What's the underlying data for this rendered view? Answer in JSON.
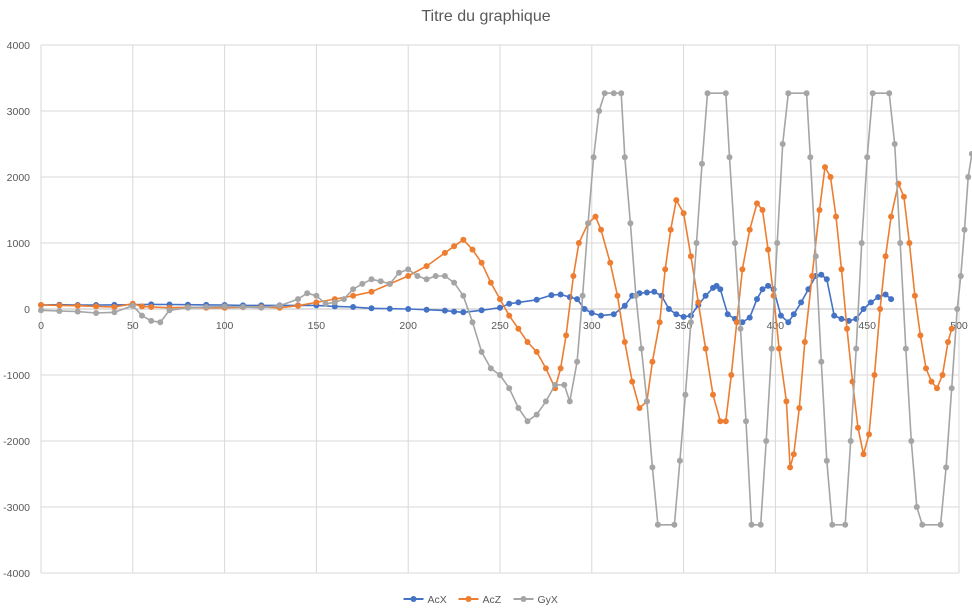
{
  "chart_data": {
    "type": "scatter",
    "title": "Titre du graphique",
    "xlim": [
      0,
      500
    ],
    "ylim": [
      -4000,
      4000
    ],
    "x_ticks": [
      "0",
      "50",
      "100",
      "150",
      "200",
      "250",
      "300",
      "350",
      "400",
      "450",
      "500"
    ],
    "y_ticks": [
      "4000",
      "3000",
      "2000",
      "1000",
      "0",
      "-1000",
      "-2000",
      "-3000",
      "-4000"
    ],
    "grid": true,
    "legend": "bottom",
    "series": [
      {
        "name": "AcX",
        "color": "#4472C4",
        "points": [
          [
            0,
            60
          ],
          [
            10,
            65
          ],
          [
            20,
            60
          ],
          [
            30,
            60
          ],
          [
            40,
            62
          ],
          [
            50,
            65
          ],
          [
            60,
            70
          ],
          [
            70,
            68
          ],
          [
            80,
            65
          ],
          [
            90,
            62
          ],
          [
            100,
            60
          ],
          [
            110,
            55
          ],
          [
            120,
            55
          ],
          [
            130,
            55
          ],
          [
            140,
            55
          ],
          [
            150,
            55
          ],
          [
            160,
            40
          ],
          [
            170,
            30
          ],
          [
            180,
            10
          ],
          [
            190,
            5
          ],
          [
            200,
            0
          ],
          [
            210,
            -10
          ],
          [
            220,
            -25
          ],
          [
            225,
            -40
          ],
          [
            230,
            -50
          ],
          [
            240,
            -20
          ],
          [
            250,
            20
          ],
          [
            255,
            80
          ],
          [
            260,
            100
          ],
          [
            270,
            140
          ],
          [
            278,
            210
          ],
          [
            283,
            220
          ],
          [
            288,
            180
          ],
          [
            292,
            150
          ],
          [
            296,
            0
          ],
          [
            300,
            -60
          ],
          [
            305,
            -100
          ],
          [
            312,
            -80
          ],
          [
            318,
            50
          ],
          [
            322,
            200
          ],
          [
            326,
            240
          ],
          [
            330,
            250
          ],
          [
            334,
            260
          ],
          [
            338,
            200
          ],
          [
            342,
            0
          ],
          [
            346,
            -80
          ],
          [
            350,
            -120
          ],
          [
            354,
            -100
          ],
          [
            358,
            60
          ],
          [
            362,
            200
          ],
          [
            366,
            320
          ],
          [
            368,
            350
          ],
          [
            370,
            300
          ],
          [
            374,
            -80
          ],
          [
            378,
            -150
          ],
          [
            382,
            -200
          ],
          [
            386,
            -130
          ],
          [
            390,
            150
          ],
          [
            393,
            300
          ],
          [
            396,
            350
          ],
          [
            399,
            300
          ],
          [
            403,
            -100
          ],
          [
            407,
            -200
          ],
          [
            410,
            -80
          ],
          [
            414,
            100
          ],
          [
            418,
            300
          ],
          [
            422,
            500
          ],
          [
            425,
            520
          ],
          [
            428,
            450
          ],
          [
            432,
            -100
          ],
          [
            436,
            -150
          ],
          [
            440,
            -180
          ],
          [
            444,
            -150
          ],
          [
            448,
            0
          ],
          [
            452,
            100
          ],
          [
            456,
            180
          ],
          [
            460,
            220
          ],
          [
            463,
            150
          ]
        ]
      },
      {
        "name": "AcZ",
        "color": "#ED7D31",
        "points": [
          [
            0,
            60
          ],
          [
            10,
            55
          ],
          [
            20,
            50
          ],
          [
            30,
            40
          ],
          [
            40,
            30
          ],
          [
            50,
            80
          ],
          [
            55,
            40
          ],
          [
            60,
            30
          ],
          [
            70,
            20
          ],
          [
            80,
            25
          ],
          [
            90,
            20
          ],
          [
            100,
            20
          ],
          [
            110,
            25
          ],
          [
            120,
            30
          ],
          [
            130,
            20
          ],
          [
            140,
            50
          ],
          [
            150,
            100
          ],
          [
            160,
            150
          ],
          [
            170,
            200
          ],
          [
            180,
            260
          ],
          [
            190,
            380
          ],
          [
            200,
            500
          ],
          [
            210,
            650
          ],
          [
            220,
            850
          ],
          [
            225,
            950
          ],
          [
            230,
            1050
          ],
          [
            235,
            900
          ],
          [
            240,
            700
          ],
          [
            245,
            400
          ],
          [
            250,
            150
          ],
          [
            255,
            -100
          ],
          [
            260,
            -300
          ],
          [
            265,
            -500
          ],
          [
            270,
            -650
          ],
          [
            275,
            -900
          ],
          [
            280,
            -1200
          ],
          [
            283,
            -900
          ],
          [
            286,
            -400
          ],
          [
            290,
            500
          ],
          [
            293,
            1000
          ],
          [
            298,
            1300
          ],
          [
            302,
            1400
          ],
          [
            305,
            1200
          ],
          [
            310,
            700
          ],
          [
            314,
            200
          ],
          [
            318,
            -500
          ],
          [
            322,
            -1100
          ],
          [
            326,
            -1500
          ],
          [
            330,
            -1400
          ],
          [
            333,
            -800
          ],
          [
            337,
            -200
          ],
          [
            340,
            600
          ],
          [
            343,
            1200
          ],
          [
            346,
            1650
          ],
          [
            350,
            1450
          ],
          [
            354,
            800
          ],
          [
            358,
            100
          ],
          [
            362,
            -600
          ],
          [
            366,
            -1300
          ],
          [
            370,
            -1700
          ],
          [
            373,
            -1700
          ],
          [
            376,
            -1000
          ],
          [
            379,
            -200
          ],
          [
            382,
            600
          ],
          [
            386,
            1200
          ],
          [
            390,
            1600
          ],
          [
            393,
            1500
          ],
          [
            396,
            900
          ],
          [
            399,
            200
          ],
          [
            402,
            -600
          ],
          [
            406,
            -1400
          ],
          [
            408,
            -2400
          ],
          [
            410,
            -2200
          ],
          [
            413,
            -1500
          ],
          [
            416,
            -500
          ],
          [
            420,
            500
          ],
          [
            424,
            1500
          ],
          [
            427,
            2150
          ],
          [
            430,
            2000
          ],
          [
            433,
            1400
          ],
          [
            436,
            600
          ],
          [
            439,
            -300
          ],
          [
            442,
            -1100
          ],
          [
            445,
            -1800
          ],
          [
            448,
            -2200
          ],
          [
            451,
            -1900
          ],
          [
            454,
            -1000
          ],
          [
            457,
            0
          ],
          [
            460,
            800
          ],
          [
            463,
            1400
          ],
          [
            467,
            1900
          ],
          [
            470,
            1700
          ],
          [
            473,
            1000
          ],
          [
            476,
            200
          ],
          [
            479,
            -400
          ],
          [
            482,
            -900
          ],
          [
            485,
            -1100
          ],
          [
            488,
            -1200
          ],
          [
            491,
            -1000
          ],
          [
            494,
            -500
          ],
          [
            496,
            -300
          ]
        ]
      },
      {
        "name": "GyX",
        "color": "#A5A5A5",
        "points": [
          [
            0,
            -20
          ],
          [
            10,
            -30
          ],
          [
            20,
            -40
          ],
          [
            30,
            -60
          ],
          [
            40,
            -50
          ],
          [
            50,
            50
          ],
          [
            55,
            -100
          ],
          [
            60,
            -180
          ],
          [
            65,
            -200
          ],
          [
            70,
            -20
          ],
          [
            80,
            20
          ],
          [
            90,
            30
          ],
          [
            100,
            40
          ],
          [
            110,
            30
          ],
          [
            120,
            20
          ],
          [
            130,
            50
          ],
          [
            140,
            150
          ],
          [
            145,
            240
          ],
          [
            150,
            200
          ],
          [
            155,
            80
          ],
          [
            160,
            100
          ],
          [
            165,
            150
          ],
          [
            170,
            300
          ],
          [
            175,
            380
          ],
          [
            180,
            450
          ],
          [
            185,
            420
          ],
          [
            190,
            380
          ],
          [
            195,
            550
          ],
          [
            200,
            600
          ],
          [
            205,
            500
          ],
          [
            210,
            450
          ],
          [
            215,
            500
          ],
          [
            220,
            500
          ],
          [
            225,
            400
          ],
          [
            230,
            200
          ],
          [
            235,
            -200
          ],
          [
            240,
            -650
          ],
          [
            245,
            -900
          ],
          [
            250,
            -1000
          ],
          [
            255,
            -1200
          ],
          [
            260,
            -1500
          ],
          [
            265,
            -1700
          ],
          [
            270,
            -1600
          ],
          [
            275,
            -1400
          ],
          [
            280,
            -1150
          ],
          [
            285,
            -1150
          ],
          [
            288,
            -1400
          ],
          [
            292,
            -800
          ],
          [
            295,
            200
          ],
          [
            298,
            1300
          ],
          [
            301,
            2300
          ],
          [
            304,
            3000
          ],
          [
            307,
            3270
          ],
          [
            312,
            3270
          ],
          [
            316,
            3270
          ],
          [
            318,
            2300
          ],
          [
            321,
            1300
          ],
          [
            324,
            200
          ],
          [
            327,
            -600
          ],
          [
            330,
            -1400
          ],
          [
            333,
            -2400
          ],
          [
            336,
            -3270
          ],
          [
            345,
            -3270
          ],
          [
            348,
            -2300
          ],
          [
            351,
            -1300
          ],
          [
            354,
            -200
          ],
          [
            357,
            1000
          ],
          [
            360,
            2200
          ],
          [
            363,
            3270
          ],
          [
            373,
            3270
          ],
          [
            375,
            2300
          ],
          [
            378,
            1000
          ],
          [
            381,
            -300
          ],
          [
            384,
            -1700
          ],
          [
            387,
            -3270
          ],
          [
            392,
            -3270
          ],
          [
            395,
            -2000
          ],
          [
            398,
            -600
          ],
          [
            401,
            1000
          ],
          [
            404,
            2500
          ],
          [
            407,
            3270
          ],
          [
            417,
            3270
          ],
          [
            419,
            2300
          ],
          [
            422,
            800
          ],
          [
            425,
            -800
          ],
          [
            428,
            -2300
          ],
          [
            431,
            -3270
          ],
          [
            438,
            -3270
          ],
          [
            441,
            -2000
          ],
          [
            444,
            -600
          ],
          [
            447,
            1000
          ],
          [
            450,
            2300
          ],
          [
            453,
            3270
          ],
          [
            462,
            3270
          ],
          [
            465,
            2500
          ],
          [
            468,
            1000
          ],
          [
            471,
            -600
          ],
          [
            474,
            -2000
          ],
          [
            477,
            -3000
          ],
          [
            480,
            -3270
          ],
          [
            490,
            -3270
          ],
          [
            493,
            -2400
          ],
          [
            496,
            -1200
          ],
          [
            499,
            0
          ],
          [
            501,
            500
          ],
          [
            503,
            1200
          ],
          [
            505,
            2000
          ],
          [
            507,
            2350
          ]
        ]
      }
    ]
  }
}
